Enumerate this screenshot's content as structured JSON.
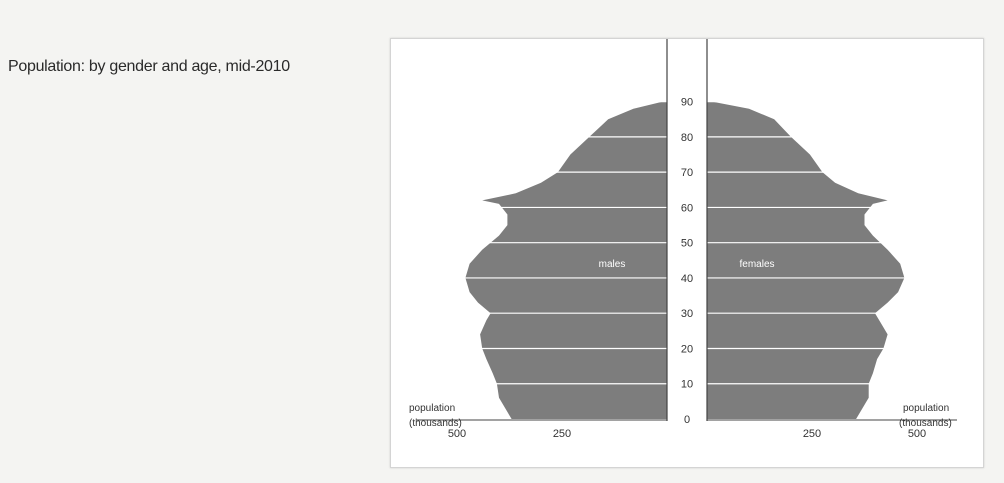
{
  "title": "Population: by gender and age, mid-2010",
  "chart_data": {
    "type": "population-pyramid",
    "title": "Population: by gender and age, mid-2010",
    "xlabel_left": "population (thousands)",
    "xlabel_right": "population (thousands)",
    "x_ticks": [
      500,
      250
    ],
    "xlim": [
      0,
      500
    ],
    "y_ticks": [
      0,
      10,
      20,
      30,
      40,
      50,
      60,
      70,
      80,
      90
    ],
    "ylim": [
      0,
      95
    ],
    "series": [
      {
        "name": "males",
        "ages": [
          0,
          3,
          6,
          10,
          13,
          17,
          20,
          24,
          28,
          30,
          33,
          36,
          40,
          44,
          48,
          52,
          55,
          58,
          61,
          62,
          64,
          67,
          70,
          75,
          80,
          85,
          88,
          90
        ],
        "values": [
          370,
          385,
          400,
          405,
          415,
          430,
          440,
          445,
          430,
          420,
          450,
          470,
          480,
          470,
          440,
          400,
          380,
          380,
          400,
          440,
          360,
          300,
          260,
          230,
          185,
          140,
          80,
          10
        ]
      },
      {
        "name": "females",
        "ages": [
          0,
          3,
          6,
          10,
          13,
          17,
          20,
          24,
          28,
          30,
          33,
          36,
          40,
          44,
          48,
          52,
          55,
          58,
          61,
          62,
          64,
          67,
          70,
          75,
          80,
          85,
          88,
          90
        ],
        "values": [
          355,
          370,
          385,
          385,
          395,
          405,
          420,
          430,
          410,
          400,
          430,
          455,
          470,
          460,
          430,
          395,
          375,
          375,
          395,
          430,
          360,
          305,
          275,
          245,
          200,
          160,
          100,
          12
        ]
      }
    ],
    "fill_color": "#7d7d7d",
    "grid_color": "#ffffff"
  }
}
